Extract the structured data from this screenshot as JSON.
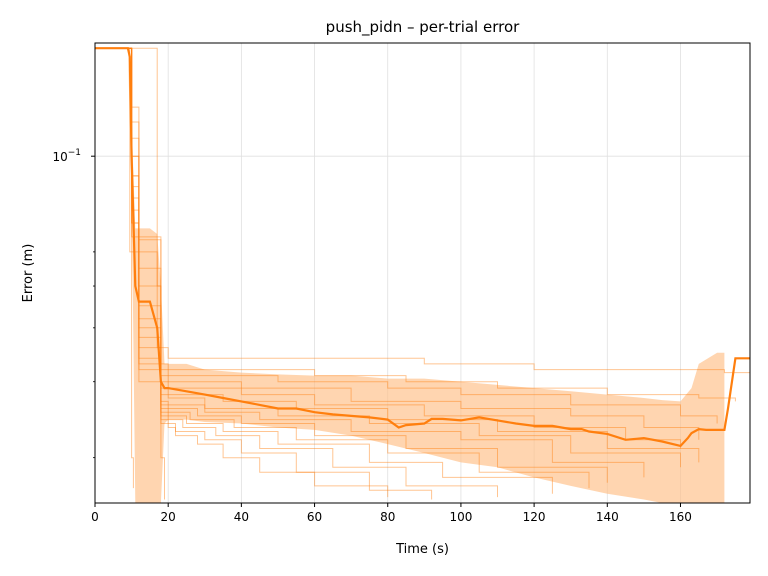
{
  "chart_data": {
    "type": "line",
    "title": "push_pidn – per-trial error",
    "xlabel": "Time (s)",
    "ylabel": "Error (m)",
    "xlim": [
      0,
      179
    ],
    "ylim": [
      0.0157,
      0.183
    ],
    "yscale": "log",
    "grid": true,
    "x_ticks": [
      0,
      20,
      40,
      60,
      80,
      100,
      120,
      140,
      160
    ],
    "y_tick": {
      "value": 0.1,
      "base": "10",
      "exponent": "−1"
    },
    "colors": {
      "mean": "#ff7f0e",
      "trial": "#ff7f0e",
      "band": "#ffbf86",
      "grid": "#e0e0e0"
    },
    "mean": {
      "x": [
        0,
        9,
        9.5,
        10,
        11,
        12,
        15,
        17,
        18,
        19,
        20,
        25,
        30,
        35,
        40,
        45,
        50,
        55,
        60,
        65,
        70,
        75,
        80,
        83,
        85,
        90,
        92,
        95,
        100,
        105,
        110,
        115,
        120,
        125,
        130,
        133,
        135,
        140,
        145,
        150,
        155,
        160,
        162,
        163,
        165,
        167,
        170,
        172,
        173,
        175,
        179
      ],
      "y": [
        0.178,
        0.178,
        0.17,
        0.1,
        0.05,
        0.046,
        0.046,
        0.04,
        0.03,
        0.029,
        0.029,
        0.0285,
        0.028,
        0.0275,
        0.027,
        0.0265,
        0.026,
        0.026,
        0.0255,
        0.0252,
        0.025,
        0.0248,
        0.0245,
        0.0235,
        0.0238,
        0.024,
        0.0246,
        0.0246,
        0.0244,
        0.0248,
        0.0244,
        0.024,
        0.0237,
        0.0237,
        0.0233,
        0.0233,
        0.023,
        0.0227,
        0.022,
        0.0222,
        0.0218,
        0.0213,
        0.0222,
        0.0228,
        0.0233,
        0.0232,
        0.0232,
        0.0232,
        0.026,
        0.034,
        0.034
      ]
    },
    "band": {
      "x": [
        0,
        9,
        10,
        11,
        12,
        15,
        17,
        18,
        19,
        20,
        25,
        30,
        40,
        50,
        60,
        70,
        80,
        90,
        100,
        110,
        120,
        130,
        140,
        150,
        155,
        160,
        163,
        165,
        170,
        172
      ],
      "upper": [
        0.178,
        0.178,
        0.12,
        0.068,
        0.068,
        0.068,
        0.066,
        0.05,
        0.033,
        0.033,
        0.033,
        0.032,
        0.0315,
        0.0312,
        0.031,
        0.031,
        0.0305,
        0.0305,
        0.03,
        0.0295,
        0.029,
        0.0285,
        0.028,
        0.0275,
        0.0272,
        0.027,
        0.029,
        0.033,
        0.035,
        0.035
      ],
      "lower": [
        0.178,
        0.178,
        0.082,
        0.0157,
        0.0157,
        0.0157,
        0.0157,
        0.0157,
        0.024,
        0.0245,
        0.0245,
        0.0242,
        0.024,
        0.0235,
        0.0232,
        0.0225,
        0.0215,
        0.0205,
        0.0195,
        0.019,
        0.018,
        0.0172,
        0.0165,
        0.016,
        0.0157,
        0.0157,
        0.0157,
        0.0157,
        0.0157,
        0.0157
      ]
    },
    "trials": [
      {
        "x": [
          0,
          9,
          10,
          12,
          17,
          20,
          70,
          90,
          120,
          160,
          172,
          179
        ],
        "y": [
          0.178,
          0.178,
          0.13,
          0.06,
          0.036,
          0.034,
          0.034,
          0.033,
          0.032,
          0.032,
          0.0315,
          0.0315
        ]
      },
      {
        "x": [
          0,
          9,
          10,
          12,
          18,
          20,
          60,
          85,
          110,
          140,
          165,
          175
        ],
        "y": [
          0.178,
          0.178,
          0.11,
          0.065,
          0.033,
          0.032,
          0.031,
          0.03,
          0.029,
          0.028,
          0.0275,
          0.027
        ]
      },
      {
        "x": [
          0,
          9,
          10,
          12,
          18,
          20,
          50,
          80,
          100,
          130,
          160,
          170
        ],
        "y": [
          0.178,
          0.178,
          0.12,
          0.064,
          0.032,
          0.031,
          0.03,
          0.029,
          0.028,
          0.0265,
          0.025,
          0.024
        ]
      },
      {
        "x": [
          0,
          9,
          10,
          12,
          18,
          20,
          40,
          70,
          100,
          130,
          150,
          165
        ],
        "y": [
          0.178,
          0.178,
          0.1,
          0.055,
          0.031,
          0.03,
          0.029,
          0.027,
          0.026,
          0.025,
          0.0235,
          0.022
        ]
      },
      {
        "x": [
          0,
          9,
          10,
          12,
          18,
          20,
          40,
          60,
          90,
          120,
          145,
          160
        ],
        "y": [
          0.178,
          0.178,
          0.1,
          0.05,
          0.03,
          0.029,
          0.028,
          0.0265,
          0.025,
          0.0235,
          0.022,
          0.021
        ]
      },
      {
        "x": [
          0,
          9,
          10,
          12,
          18,
          20,
          35,
          55,
          80,
          110,
          140,
          165
        ],
        "y": [
          0.178,
          0.178,
          0.09,
          0.045,
          0.029,
          0.028,
          0.027,
          0.026,
          0.0245,
          0.023,
          0.021,
          0.0195
        ]
      },
      {
        "x": [
          0,
          9,
          10,
          12,
          18,
          20,
          30,
          50,
          75,
          105,
          130,
          160
        ],
        "y": [
          0.178,
          0.178,
          0.09,
          0.042,
          0.028,
          0.0275,
          0.026,
          0.025,
          0.024,
          0.0225,
          0.0205,
          0.019
        ]
      },
      {
        "x": [
          0,
          9,
          10,
          12,
          18,
          20,
          30,
          45,
          70,
          100,
          125,
          150
        ],
        "y": [
          0.178,
          0.178,
          0.085,
          0.04,
          0.027,
          0.0265,
          0.0255,
          0.0245,
          0.023,
          0.022,
          0.0195,
          0.018
        ]
      },
      {
        "x": [
          0,
          9,
          10,
          12,
          18,
          20,
          28,
          40,
          60,
          85,
          110,
          140
        ],
        "y": [
          0.178,
          0.178,
          0.08,
          0.038,
          0.0265,
          0.026,
          0.025,
          0.024,
          0.0225,
          0.021,
          0.019,
          0.0175
        ]
      },
      {
        "x": [
          0,
          9,
          10,
          12,
          18,
          20,
          26,
          38,
          55,
          80,
          105,
          135
        ],
        "y": [
          0.178,
          0.178,
          0.075,
          0.036,
          0.026,
          0.0255,
          0.0245,
          0.0235,
          0.022,
          0.0205,
          0.0185,
          0.017
        ]
      },
      {
        "x": [
          0,
          9,
          10,
          12,
          18,
          20,
          25,
          35,
          50,
          75,
          95,
          125
        ],
        "y": [
          0.178,
          0.178,
          0.07,
          0.034,
          0.0255,
          0.025,
          0.024,
          0.023,
          0.0215,
          0.0195,
          0.018,
          0.0165
        ]
      },
      {
        "x": [
          0,
          9,
          10,
          12,
          18,
          20,
          24,
          33,
          45,
          65,
          85,
          110
        ],
        "y": [
          0.178,
          0.178,
          0.07,
          0.033,
          0.025,
          0.0245,
          0.0235,
          0.0225,
          0.021,
          0.019,
          0.0172,
          0.0162
        ]
      },
      {
        "x": [
          0,
          9,
          10,
          12,
          18,
          20,
          22,
          30,
          40,
          55,
          75,
          92
        ],
        "y": [
          0.178,
          0.178,
          0.065,
          0.032,
          0.0245,
          0.024,
          0.023,
          0.022,
          0.0205,
          0.0185,
          0.0168,
          0.016
        ]
      },
      {
        "x": [
          0,
          9,
          10,
          12,
          18,
          20,
          22,
          28,
          35,
          45,
          60,
          80
        ],
        "y": [
          0.178,
          0.178,
          0.06,
          0.03,
          0.024,
          0.0235,
          0.0225,
          0.0215,
          0.02,
          0.0185,
          0.0172,
          0.0162
        ]
      },
      {
        "x": [
          0,
          9,
          9.5,
          10,
          10.5
        ],
        "y": [
          0.178,
          0.178,
          0.06,
          0.02,
          0.017
        ]
      },
      {
        "x": [
          0,
          16,
          17,
          18,
          19
        ],
        "y": [
          0.178,
          0.178,
          0.05,
          0.02,
          0.016
        ]
      }
    ]
  }
}
